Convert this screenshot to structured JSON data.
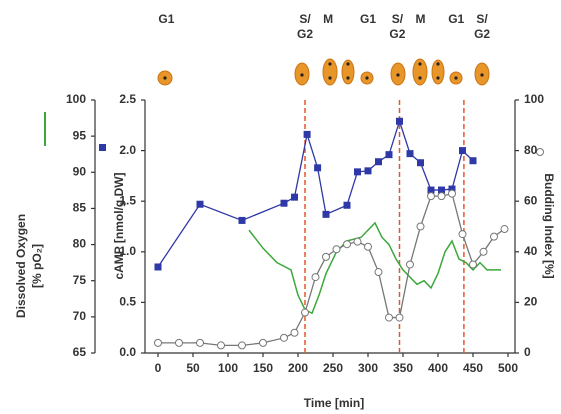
{
  "chart_data": {
    "type": "line",
    "xlabel": "Time [min]",
    "xlim": [
      0,
      500
    ],
    "xticks": [
      0,
      50,
      100,
      150,
      200,
      250,
      300,
      350,
      400,
      450,
      500
    ],
    "ylabel": "cAMP [nmol/g DW]",
    "ylim": [
      0,
      2.5
    ],
    "yticks": [
      {
        "value": 0,
        "label": "0.0"
      },
      {
        "value": 0.5,
        "label": "0.5"
      },
      {
        "value": 1,
        "label": "1.0"
      },
      {
        "value": 1.5,
        "label": "1.5"
      },
      {
        "value": 2,
        "label": "2.0"
      },
      {
        "value": 2.5,
        "label": "2.5"
      }
    ],
    "y2label": "Budding Index [%]",
    "y2lim": [
      0,
      100
    ],
    "y2ticks": [
      0,
      20,
      40,
      60,
      80,
      100
    ],
    "y3label": [
      "Dissolved Oxygen",
      "[% pO₂]"
    ],
    "y3lim": [
      65,
      100
    ],
    "y3ticks": [
      65,
      70,
      75,
      80,
      85,
      90,
      95,
      100
    ],
    "phase_lines": {
      "color": "#e8552a",
      "x": [
        210,
        345,
        437
      ]
    },
    "phases": [
      {
        "lines": [
          "G1"
        ],
        "x": 12
      },
      {
        "lines": [
          "S/",
          "G2"
        ],
        "x": 210
      },
      {
        "lines": [
          "M"
        ],
        "x": 243
      },
      {
        "lines": [
          "G1"
        ],
        "x": 300
      },
      {
        "lines": [
          "S/",
          "G2"
        ],
        "x": 342
      },
      {
        "lines": [
          "M"
        ],
        "x": 375
      },
      {
        "lines": [
          "G1"
        ],
        "x": 426
      },
      {
        "lines": [
          "S/",
          "G2"
        ],
        "x": 463
      }
    ],
    "series": [
      {
        "axis": "y3",
        "color": "#3aa83a",
        "marker": "none",
        "x": [
          130,
          150,
          170,
          190,
          200,
          210,
          220,
          230,
          240,
          255,
          270,
          290,
          300,
          310,
          320,
          330,
          340,
          350,
          360,
          370,
          380,
          390,
          400,
          410,
          420,
          430,
          440,
          450,
          460,
          470,
          480,
          490
        ],
        "values": [
          82,
          79.5,
          77.5,
          76.5,
          73,
          71,
          70.5,
          73,
          76,
          79,
          80.5,
          81,
          82,
          83,
          81,
          80,
          78,
          76.5,
          75.5,
          74.5,
          75,
          74,
          76,
          79,
          80.5,
          78,
          77.5,
          76.5,
          77.5,
          76.5,
          76.5,
          76.5
        ]
      },
      {
        "axis": "y",
        "color": "#2e38a6",
        "marker": "square",
        "x": [
          0,
          60,
          120,
          180,
          195,
          213,
          228,
          240,
          270,
          285,
          300,
          315,
          330,
          345,
          360,
          375,
          390,
          405,
          420,
          435,
          450
        ],
        "values": [
          0.85,
          1.47,
          1.31,
          1.48,
          1.54,
          2.16,
          1.83,
          1.37,
          1.46,
          1.79,
          1.8,
          1.89,
          1.96,
          2.29,
          1.97,
          1.88,
          1.61,
          1.61,
          1.62,
          2.0,
          1.9
        ]
      },
      {
        "axis": "y2",
        "color": "#777777",
        "marker": "circle",
        "x": [
          0,
          30,
          60,
          90,
          120,
          150,
          180,
          195,
          210,
          225,
          240,
          255,
          270,
          285,
          300,
          315,
          330,
          345,
          360,
          375,
          390,
          405,
          420,
          435,
          450,
          465,
          480,
          495
        ],
        "values": [
          4,
          4,
          4,
          3,
          3,
          4,
          6,
          8,
          16,
          30,
          38,
          41,
          43,
          44,
          42,
          32,
          14,
          14,
          35,
          50,
          62,
          62,
          63,
          47,
          35,
          40,
          46,
          49
        ]
      }
    ]
  }
}
